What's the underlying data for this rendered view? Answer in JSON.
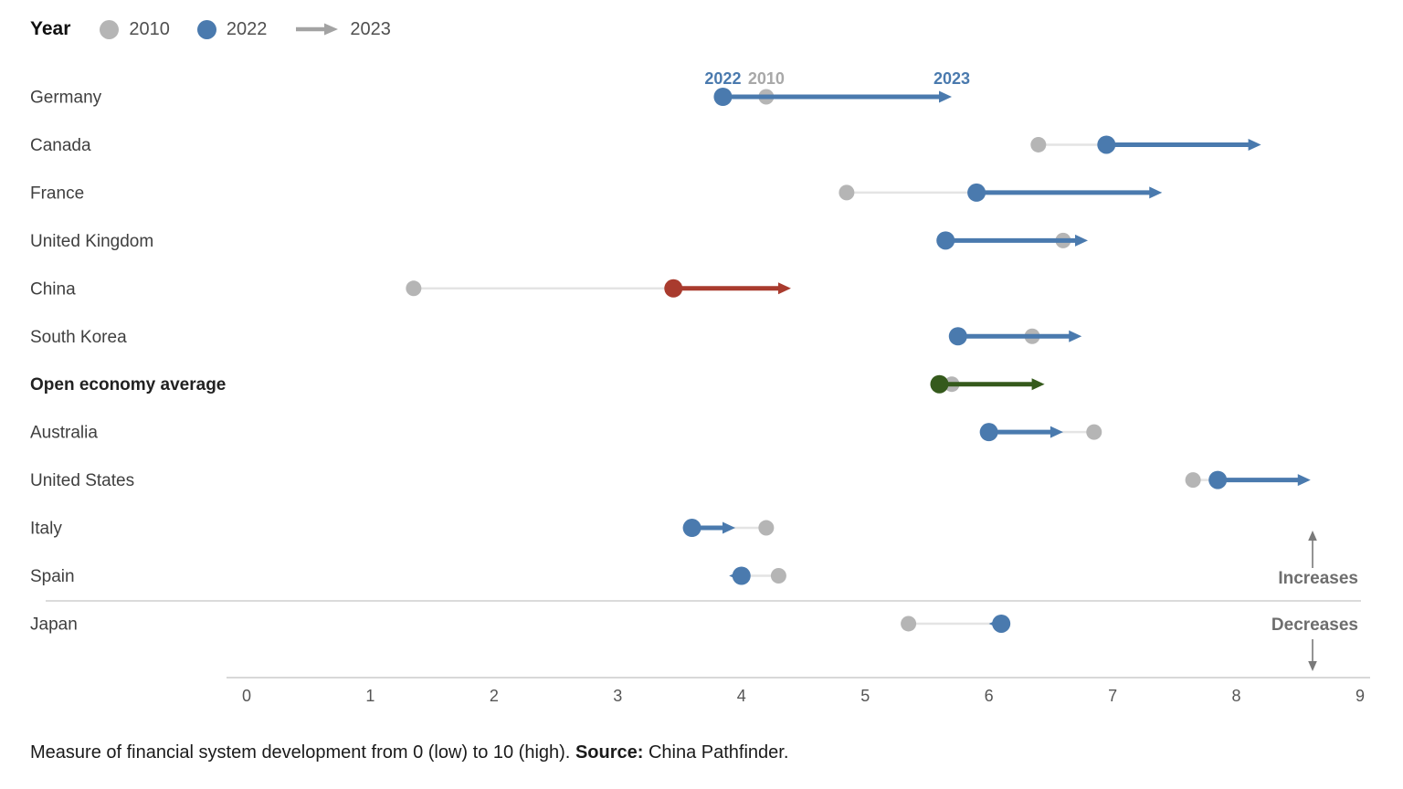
{
  "legend": {
    "title": "Year",
    "items": [
      {
        "label": "2010",
        "marker": "dot",
        "color": "#b5b5b5"
      },
      {
        "label": "2022",
        "marker": "dot",
        "color": "#4a7aae"
      },
      {
        "label": "2023",
        "marker": "arrow",
        "color": "#a3a3a3"
      }
    ]
  },
  "chart_data": {
    "type": "dumbbell-arrow",
    "title": "",
    "xlabel": "",
    "ylabel": "",
    "x_axis": {
      "min": 0,
      "max": 9,
      "ticks": [
        "0",
        "1",
        "2",
        "3",
        "4",
        "5",
        "6",
        "7",
        "8",
        "9"
      ]
    },
    "series_years": [
      "2010",
      "2022",
      "2023"
    ],
    "arrow_year_labels": {
      "start": "2022",
      "mid": "2010",
      "end": "2023",
      "mid_color": "#a8a8a8"
    },
    "rows": [
      {
        "country": "Germany",
        "v2010": 4.2,
        "v2022": 3.85,
        "v2023": 5.7,
        "bold": false
      },
      {
        "country": "Canada",
        "v2010": 6.4,
        "v2022": 6.95,
        "v2023": 8.2,
        "bold": false
      },
      {
        "country": "France",
        "v2010": 4.85,
        "v2022": 5.9,
        "v2023": 7.4,
        "bold": false
      },
      {
        "country": "United Kingdom",
        "v2010": 6.6,
        "v2022": 5.65,
        "v2023": 6.8,
        "bold": false
      },
      {
        "country": "China",
        "v2010": 1.35,
        "v2022": 3.45,
        "v2023": 4.4,
        "bold": false,
        "color": "#a93b2e"
      },
      {
        "country": "South Korea",
        "v2010": 6.35,
        "v2022": 5.75,
        "v2023": 6.75,
        "bold": false
      },
      {
        "country": "Open economy average",
        "v2010": 5.7,
        "v2022": 5.6,
        "v2023": 6.45,
        "bold": true,
        "color": "#355a1c"
      },
      {
        "country": "Australia",
        "v2010": 6.85,
        "v2022": 6.0,
        "v2023": 6.6,
        "bold": false
      },
      {
        "country": "United States",
        "v2010": 7.65,
        "v2022": 7.85,
        "v2023": 8.6,
        "bold": false
      },
      {
        "country": "Italy",
        "v2010": 4.2,
        "v2022": 3.6,
        "v2023": 3.95,
        "bold": false
      },
      {
        "country": "Spain",
        "v2010": 4.3,
        "v2022": 4.0,
        "v2023": 3.9,
        "bold": false
      },
      {
        "country": "Japan",
        "v2010": 5.35,
        "v2022": 6.1,
        "v2023": 6.0,
        "bold": false
      }
    ],
    "annotations": {
      "increases": "Increases",
      "decreases": "Decreases"
    },
    "colors": {
      "dot2010": "#b5b5b5",
      "default2022": "#4a7aae",
      "connector": "#e4e4e4"
    },
    "layout": {
      "grid": false,
      "legend_position": "top-left"
    }
  },
  "footer": {
    "note": "Measure of financial system development from 0 (low) to 10 (high).",
    "source_label": "Source:",
    "source_value": " China Pathfinder."
  }
}
